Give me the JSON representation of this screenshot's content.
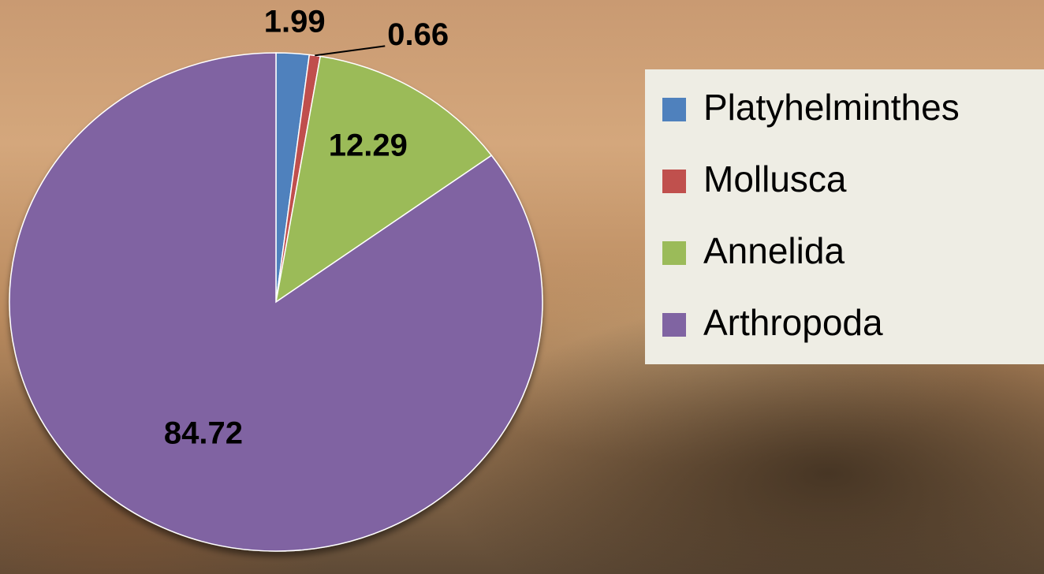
{
  "chart_data": {
    "type": "pie",
    "categories": [
      "Platyhelminthes",
      "Mollusca",
      "Annelida",
      "Arthropoda"
    ],
    "values": [
      1.99,
      0.66,
      12.29,
      84.72
    ],
    "colors": [
      "#4f81bd",
      "#c0504d",
      "#9bbb59",
      "#8064a2"
    ],
    "legend": "right"
  }
}
